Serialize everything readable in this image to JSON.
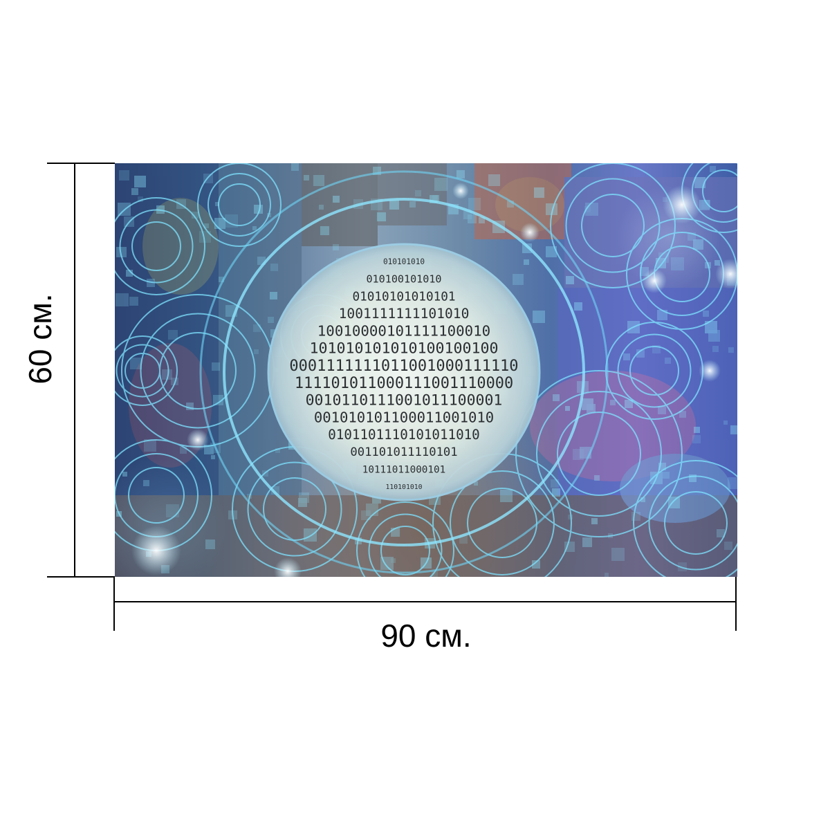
{
  "dimensions": {
    "width_label": "90 см.",
    "height_label": "60 см."
  },
  "poster": {
    "binary_rows": [
      "010101010",
      "010100101010",
      "01010101010101",
      "1001111111101010",
      "10010000101111100010",
      "101010101010100100100",
      "0001111111011001000111110",
      "111101011000111001110000",
      "0010110111001011100001",
      "001010101100011001010",
      "0101101110101011010",
      "001101011110101",
      "10111011000101",
      "110101010"
    ],
    "colors": {
      "line_color": "#000000",
      "glow": "#7fe3ff",
      "sphere_light": "#f4f8f4",
      "sphere_edge": "#8fb6cc"
    }
  }
}
